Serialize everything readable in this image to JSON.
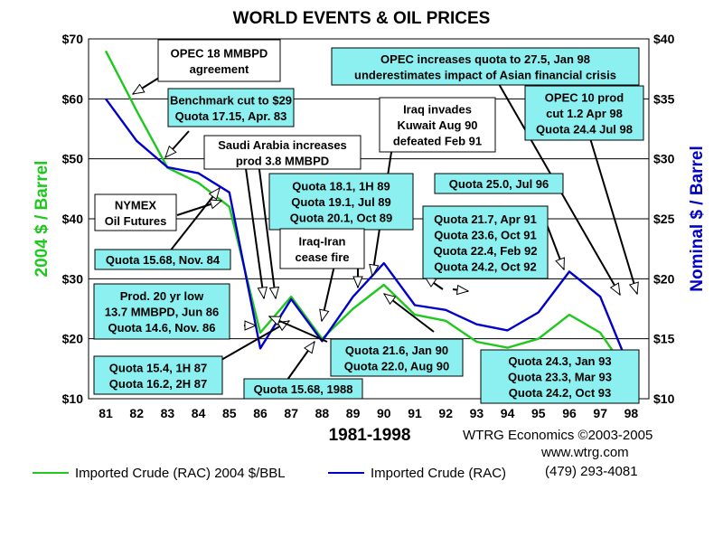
{
  "chart_data": {
    "type": "line",
    "title": "WORLD EVENTS &  OIL PRICES",
    "xlabel": "1981-1998",
    "ylabel_left": "2004 $ / Barrel",
    "ylabel_right": "Nominal $ / Barrel",
    "categories": [
      "81",
      "82",
      "83",
      "84",
      "85",
      "86",
      "87",
      "88",
      "89",
      "90",
      "91",
      "92",
      "93",
      "94",
      "95",
      "96",
      "97",
      "98"
    ],
    "ylim_left": [
      10,
      70
    ],
    "ylim_right": [
      10,
      40
    ],
    "yticks_left": [
      "$10",
      "$20",
      "$30",
      "$40",
      "$50",
      "$60",
      "$70"
    ],
    "yticks_right": [
      "$10",
      "$15",
      "$20",
      "$25",
      "$30",
      "$35",
      "$40"
    ],
    "series": [
      {
        "name": "Imported Crude (RAC) 2004 $/BBL",
        "axis": "left",
        "color": "#1ec81e",
        "values": [
          68.0,
          58.0,
          48.5,
          46.0,
          42.0,
          21.0,
          27.0,
          20.0,
          25.0,
          29.0,
          24.0,
          23.0,
          19.5,
          18.5,
          20.0,
          24.0,
          21.0,
          13.5
        ]
      },
      {
        "name": "Imported Crude (RAC)",
        "axis": "right",
        "color": "#0000c8",
        "values": [
          35.0,
          31.5,
          29.3,
          28.8,
          27.2,
          14.2,
          18.3,
          14.8,
          18.5,
          21.3,
          17.8,
          17.4,
          16.2,
          15.7,
          17.2,
          20.6,
          18.5,
          12.2
        ]
      }
    ],
    "annotations": [
      {
        "lines": [
          "OPEC 18 MMBPD",
          "agreement"
        ]
      },
      {
        "lines": [
          "Benchmark cut to $29",
          "Quota 17.15, Apr. 83"
        ]
      },
      {
        "lines": [
          "Saudi Arabia increases",
          "prod 3.8 MMBPD"
        ]
      },
      {
        "lines": [
          "NYMEX",
          "Oil Futures"
        ]
      },
      {
        "lines": [
          "Quota 15.68, Nov. 84"
        ]
      },
      {
        "lines": [
          "Prod. 20 yr low",
          "13.7 MMBPD, Jun 86",
          "Quota 14.6, Nov. 86"
        ]
      },
      {
        "lines": [
          "Quota 15.4, 1H 87",
          "Quota 16.2, 2H 87"
        ]
      },
      {
        "lines": [
          "Quota 15.68, 1988"
        ]
      },
      {
        "lines": [
          "Quota 18.1, 1H 89",
          "Quota 19.1, Jul 89",
          "Quota 20.1, Oct 89"
        ]
      },
      {
        "lines": [
          "Iraq-Iran",
          "cease fire"
        ]
      },
      {
        "lines": [
          "Iraq invades",
          "Kuwait Aug 90",
          "defeated Feb 91"
        ]
      },
      {
        "lines": [
          "Quota 21.6, Jan 90",
          "Quota 22.0, Aug 90"
        ]
      },
      {
        "lines": [
          "OPEC increases quota to 27.5, Jan 98",
          "underestimates impact of Asian financial crisis"
        ]
      },
      {
        "lines": [
          "OPEC 10 prod",
          "cut 1.2 Apr 98",
          "Quota 24.4 Jul 98"
        ]
      },
      {
        "lines": [
          "Quota 25.0, Jul 96"
        ]
      },
      {
        "lines": [
          "Quota 21.7, Apr 91",
          "Quota 23.6, Oct 91",
          "Quota 22.4, Feb 92",
          "Quota 24.2, Oct 92"
        ]
      },
      {
        "lines": [
          "Quota 24.3, Jan 93",
          "Quota 23.3, Mar 93",
          "Quota 24.2, Oct 93"
        ]
      }
    ],
    "grid": true,
    "legend": "bottom-left"
  },
  "credits": {
    "company": "WTRG Economics  ©2003-2005",
    "website": "www.wtrg.com",
    "phone": "(479) 293-4081"
  }
}
